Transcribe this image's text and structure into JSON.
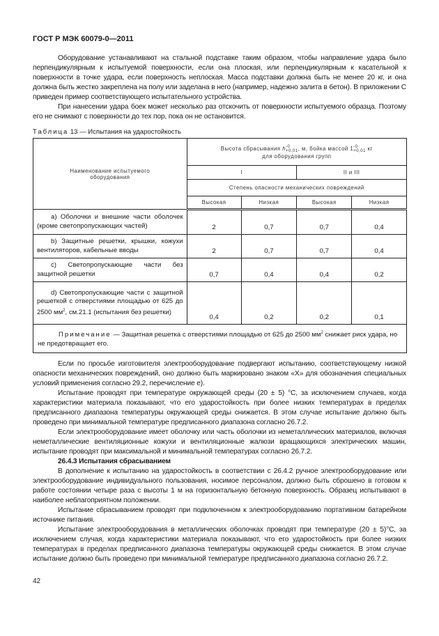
{
  "header": {
    "title": "ГОСТ Р МЭК 60079-0—2011"
  },
  "intro": [
    "Оборудование устанавливают на стальной подставке таким образом, чтобы направление удара было перпендикулярным к испытуемой поверхности, если она плоская, или перпендикулярным к касательной к поверхности в точке удара, если поверхность неплоская. Масса подставки должна быть не менее 20 кг, и она должна быть жестко закреплена на полу или заделана в него (например, надежно залита в бетон). В приложении С приведен пример соответствующего испытательного устройства.",
    "При нанесении удара боек может несколько раз отскочить от поверхности испытуемого образца. Поэтому его не снимают с поверхности до тех пор, пока он не остановится."
  ],
  "table": {
    "caption_label": "Таблица",
    "caption_text": " 13 — Испытания на ударостойкость",
    "col_name": "Наименование испытуемого оборудования",
    "height_header": "Высота сбрасывания h, м, бойка массой 1 кг для оборудования групп",
    "height_pre": "Высота сбрасывания ",
    "height_h": "h",
    "height_mid": ", м, бойка массой 1",
    "height_post": " кг",
    "height_line2": "для оборудования групп",
    "tol_up": "-0",
    "tol_down": "+0,01",
    "group1": "I",
    "group2": "II и III",
    "danger": "Степень опасности механических повреждений",
    "levels": [
      "Высокая",
      "Низкая",
      "Высокая",
      "Низкая"
    ],
    "rows": [
      {
        "name": "а) Оболочки и внешние части оболочек (кроме светопропускающих частей)",
        "values": [
          "2",
          "0,7",
          "0,7",
          "0,4"
        ]
      },
      {
        "name": "b) Защитные решетки, крышки, кожухи вентиляторов, кабельные вводы",
        "values": [
          "2",
          "0,7",
          "0,7",
          "0,4"
        ]
      },
      {
        "name": "с) Светопропускающие части без защитной решетки",
        "values": [
          "0,7",
          "0,4",
          "0,4",
          "0,2"
        ]
      },
      {
        "name_pre": "d) Светопропускающие части с защитной решеткой с отверстиями площадью от 625 до 2500 мм",
        "name_sup": "2",
        "name_post": ", см.21.1 (испытания без решетки)",
        "values": [
          "0,4",
          "0,2",
          "0,2",
          "0,1"
        ]
      }
    ],
    "note_label": "Примечание",
    "note_pre": " — Защитная решетка с отверстиями площадью от 625 до 2500 мм",
    "note_sup": "2",
    "note_post": " снижает риск удара, но не предотвращает его."
  },
  "after": [
    "Если по просьбе изготовителя электрооборудование подвергают испытанию, соответствующему низкой опасности механических повреждений, оно должно быть маркировано знаком «X» для обозначения специальных условий применения согласно 29.2, перечисление е).",
    "Испытание проводят при температуре окружающей среды (20 ± 5) °С, за исключением случаев, когда характеристики материала показывают, что его ударостойкость при более низких температурах в пределах предписанного диапазона температуры окружающей среды снижается. В этом случае испытание должно быть проведено при минимальной температуре предписанного диапазона согласно 26.7.2.",
    "Если электрооборудование имеет оболочку или часть оболочки из неметаллических материалов, включая неметаллические вентиляционные кожухи и вентиляционные жалюзи вращающихся электрических машин, испытание проводят при максимальной и минимальной температурах согласно 26.7.2."
  ],
  "section": {
    "heading": "26.4.3 Испытания сбрасыванием",
    "paragraphs": [
      "В дополнение к испытанию на ударостойкость в соответствии с 26.4.2 ручное электрооборудование или электрооборудование индивидуального пользования, носимое персоналом, должно быть сброшено в готовом к работе состоянии четыре раза с высоты 1 м на горизонтальную бетонную поверхность. Образец испытывают в наиболее неблагоприятном положении.",
      "Испытание сбрасыванием проводят при подключенном к электрооборудованию портативном батарейном источнике питания.",
      "Испытание электрооборудования в металлических оболочках проводят при температуре (20 ± 5)°С, за исключением случая, когда характеристики материала показывают, что его ударостойкость при более низких температурах в пределах предписанного диапазона температуры окружающей среды снижается. В этом случае испытание должно быть проведено при минимальной температуре предписанного диапазона согласно 26.7.2."
    ]
  },
  "footer": {
    "page_number": "42"
  }
}
